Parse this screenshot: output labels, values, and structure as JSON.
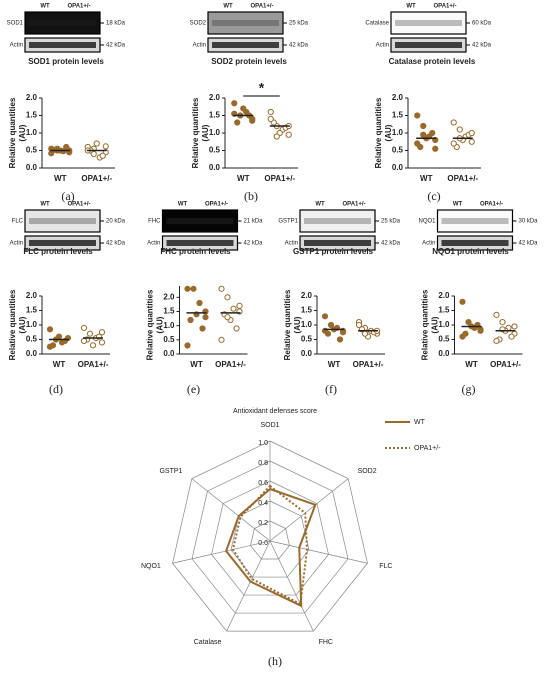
{
  "chart_data": [
    {
      "type": "scatter",
      "panel": "(a)",
      "title": "SOD1 protein levels",
      "ylabel": [
        "Relative quantities",
        "(AU)"
      ],
      "blot": {
        "lanes": [
          "WT",
          "OPA1+/-"
        ],
        "rows": [
          {
            "protein": "SOD1",
            "kda": "18 kDa"
          },
          {
            "protein": "Actin",
            "kda": "42 kDa"
          }
        ]
      },
      "categories": [
        "WT",
        "OPA1+/-"
      ],
      "ylim": [
        0,
        2.0
      ],
      "yticks": [
        {
          "value": 0,
          "label": "0.0"
        },
        {
          "value": 0.5,
          "label": "0.5"
        },
        {
          "value": 1,
          "label": "1.0"
        },
        {
          "value": 1.5,
          "label": "1.5"
        },
        {
          "value": 2,
          "label": "2.0"
        }
      ],
      "series": [
        {
          "name": "WT",
          "color": "#9a6a2c",
          "filled": true,
          "mean": 0.5,
          "values": [
            0.55,
            0.5,
            0.48,
            0.45,
            0.52,
            0.5,
            0.6,
            0.42,
            0.5,
            0.55
          ]
        },
        {
          "name": "OPA1+/-",
          "color": "#9a6a2c",
          "filled": false,
          "mean": 0.5,
          "values": [
            0.6,
            0.55,
            0.3,
            0.45,
            0.5,
            0.7,
            0.35,
            0.5,
            0.62,
            0.4
          ]
        }
      ]
    },
    {
      "type": "scatter",
      "panel": "(b)",
      "title": "SOD2 protein levels",
      "ylabel": [
        "Relative quantities",
        "(AU)"
      ],
      "annotation": "*",
      "blot": {
        "lanes": [
          "WT",
          "OPA1+/-"
        ],
        "rows": [
          {
            "protein": "SOD2",
            "kda": "25 kDa"
          },
          {
            "protein": "Actin",
            "kda": "42 kDa"
          }
        ]
      },
      "categories": [
        "WT",
        "OPA1+/-"
      ],
      "ylim": [
        0,
        2.0
      ],
      "yticks": [
        {
          "value": 0,
          "label": "0.0"
        },
        {
          "value": 0.5,
          "label": "0.5"
        },
        {
          "value": 1,
          "label": "1.0"
        },
        {
          "value": 1.5,
          "label": "1.5"
        },
        {
          "value": 2,
          "label": "2.0"
        }
      ],
      "series": [
        {
          "name": "WT",
          "color": "#9a6a2c",
          "filled": true,
          "mean": 1.5,
          "values": [
            1.85,
            1.5,
            1.6,
            1.4,
            1.3,
            1.7,
            1.5,
            1.55,
            1.35
          ]
        },
        {
          "name": "OPA1+/-",
          "color": "#9a6a2c",
          "filled": false,
          "mean": 1.2,
          "values": [
            1.6,
            1.2,
            1.1,
            0.95,
            1.3,
            1.0,
            1.15,
            1.4,
            1.2,
            0.9
          ]
        }
      ]
    },
    {
      "type": "scatter",
      "panel": "(c)",
      "title": "Catalase protein levels",
      "ylabel": [
        "Relative quantities",
        "(AU)"
      ],
      "blot": {
        "lanes": [
          "WT",
          "OPA1+/-"
        ],
        "rows": [
          {
            "protein": "Catalase",
            "kda": "60 kDa"
          },
          {
            "protein": "Actin",
            "kda": "42 kDa"
          }
        ]
      },
      "categories": [
        "WT",
        "OPA1+/-"
      ],
      "ylim": [
        0,
        2.0
      ],
      "yticks": [
        {
          "value": 0,
          "label": "0.0"
        },
        {
          "value": 0.5,
          "label": "0.5"
        },
        {
          "value": 1,
          "label": "1.0"
        },
        {
          "value": 1.5,
          "label": "1.5"
        },
        {
          "value": 2,
          "label": "2.0"
        }
      ],
      "series": [
        {
          "name": "WT",
          "color": "#9a6a2c",
          "filled": true,
          "mean": 0.85,
          "values": [
            1.5,
            1.2,
            0.9,
            0.8,
            0.6,
            0.85,
            1.0,
            0.7,
            0.55,
            0.95
          ]
        },
        {
          "name": "OPA1+/-",
          "color": "#9a6a2c",
          "filled": false,
          "mean": 0.85,
          "values": [
            1.3,
            1.1,
            0.9,
            0.75,
            0.6,
            0.8,
            0.95,
            0.7,
            1.0,
            0.85
          ]
        }
      ]
    },
    {
      "type": "scatter",
      "panel": "(d)",
      "title": "FLC protein levels",
      "ylabel": [
        "Relative quantities",
        "(AU)"
      ],
      "blot": {
        "lanes": [
          "WT",
          "OPA1+/-"
        ],
        "rows": [
          {
            "protein": "FLC",
            "kda": "20 kDa"
          },
          {
            "protein": "Actin",
            "kda": "42 kDa"
          }
        ]
      },
      "categories": [
        "WT",
        "OPA1+/-"
      ],
      "ylim": [
        0,
        2.0
      ],
      "yticks": [
        {
          "value": 0,
          "label": "0.0"
        },
        {
          "value": 0.5,
          "label": "0.5"
        },
        {
          "value": 1,
          "label": "1.0"
        },
        {
          "value": 1.5,
          "label": "1.5"
        },
        {
          "value": 2,
          "label": "2.0"
        }
      ],
      "series": [
        {
          "name": "WT",
          "color": "#9a6a2c",
          "filled": true,
          "mean": 0.5,
          "values": [
            0.85,
            0.5,
            0.4,
            0.55,
            0.3,
            0.6,
            0.45,
            0.25
          ]
        },
        {
          "name": "OPA1+/-",
          "color": "#9a6a2c",
          "filled": false,
          "mean": 0.55,
          "values": [
            0.9,
            0.7,
            0.55,
            0.4,
            0.5,
            0.3,
            0.6,
            0.45,
            0.75
          ]
        }
      ]
    },
    {
      "type": "scatter",
      "panel": "(e)",
      "title": "FHC protein levels",
      "ylabel": [
        "Relative quantities",
        "(AU)"
      ],
      "blot": {
        "lanes": [
          "WT",
          "OPA1+/-"
        ],
        "rows": [
          {
            "protein": "FHC",
            "kda": "21 kDa"
          },
          {
            "protein": "Actin",
            "kda": "42 kDa"
          }
        ]
      },
      "categories": [
        "WT",
        "OPA1+/-"
      ],
      "ylim": [
        0,
        2.4
      ],
      "yticks": [
        {
          "value": 0,
          "label": "0.0"
        },
        {
          "value": 0.5,
          "label": "0.5"
        },
        {
          "value": 1,
          "label": "1.0"
        },
        {
          "value": 1.5,
          "label": "1.5"
        },
        {
          "value": 2,
          "label": "2.0"
        }
      ],
      "series": [
        {
          "name": "WT",
          "color": "#9a6a2c",
          "filled": true,
          "mean": 1.45,
          "values": [
            2.3,
            2.3,
            1.8,
            1.5,
            1.2,
            1.4,
            0.9,
            0.3,
            1.3
          ]
        },
        {
          "name": "OPA1+/-",
          "color": "#9a6a2c",
          "filled": false,
          "mean": 1.45,
          "values": [
            2.3,
            2.0,
            1.6,
            1.5,
            1.4,
            1.2,
            0.9,
            0.5,
            1.7,
            1.3
          ]
        }
      ]
    },
    {
      "type": "scatter",
      "panel": "(f)",
      "title": "GSTP1 protein levels",
      "ylabel": [
        "Relative quantities",
        "(AU)"
      ],
      "blot": {
        "lanes": [
          "WT",
          "OPA1+/-"
        ],
        "rows": [
          {
            "protein": "GSTP1",
            "kda": "25 kDa"
          },
          {
            "protein": "Actin",
            "kda": "42 kDa"
          }
        ]
      },
      "categories": [
        "WT",
        "OPA1+/-"
      ],
      "ylim": [
        0,
        2.0
      ],
      "yticks": [
        {
          "value": 0,
          "label": "0.0"
        },
        {
          "value": 0.5,
          "label": "0.5"
        },
        {
          "value": 1,
          "label": "1.0"
        },
        {
          "value": 1.5,
          "label": "1.5"
        },
        {
          "value": 2,
          "label": "2.0"
        }
      ],
      "series": [
        {
          "name": "WT",
          "color": "#9a6a2c",
          "filled": true,
          "mean": 0.85,
          "values": [
            1.3,
            1.0,
            0.9,
            0.8,
            0.7,
            0.85,
            0.5,
            0.8,
            0.75
          ]
        },
        {
          "name": "OPA1+/-",
          "color": "#9a6a2c",
          "filled": false,
          "mean": 0.8,
          "values": [
            1.1,
            0.9,
            0.8,
            0.7,
            0.85,
            0.6,
            0.75,
            1.0,
            0.8,
            0.7
          ]
        }
      ]
    },
    {
      "type": "scatter",
      "panel": "(g)",
      "title": "NQO1 protein levels",
      "ylabel": [
        "Relative quantities",
        "(AU)"
      ],
      "blot": {
        "lanes": [
          "WT",
          "OPA1+/-"
        ],
        "rows": [
          {
            "protein": "NQO1",
            "kda": "30 kDa"
          },
          {
            "protein": "Actin",
            "kda": "42 kDa"
          }
        ]
      },
      "categories": [
        "WT",
        "OPA1+/-"
      ],
      "ylim": [
        0,
        2.0
      ],
      "yticks": [
        {
          "value": 0,
          "label": "0.0"
        },
        {
          "value": 0.5,
          "label": "0.5"
        },
        {
          "value": 1,
          "label": "1.0"
        },
        {
          "value": 1.5,
          "label": "1.5"
        },
        {
          "value": 2,
          "label": "2.0"
        }
      ],
      "series": [
        {
          "name": "WT",
          "color": "#9a6a2c",
          "filled": true,
          "mean": 0.95,
          "values": [
            1.8,
            1.1,
            0.9,
            0.85,
            0.7,
            0.95,
            1.0,
            0.6,
            0.8
          ]
        },
        {
          "name": "OPA1+/-",
          "color": "#9a6a2c",
          "filled": false,
          "mean": 0.8,
          "values": [
            1.35,
            1.1,
            0.9,
            0.7,
            0.5,
            0.8,
            0.6,
            0.45,
            0.95,
            0.85
          ]
        }
      ]
    },
    {
      "type": "radar",
      "panel": "(h)",
      "title": "Antioxidant defenses score",
      "axes": [
        "SOD1",
        "SOD2",
        "FLC",
        "FHC",
        "Catalase",
        "NQO1",
        "GSTP1"
      ],
      "rlim": [
        0,
        1
      ],
      "rticks": [
        {
          "value": 0,
          "label": "0.0"
        },
        {
          "value": 0.2,
          "label": "0.2"
        },
        {
          "value": 0.4,
          "label": "0.4"
        },
        {
          "value": 0.6,
          "label": "0.6"
        },
        {
          "value": 0.8,
          "label": "0.8"
        },
        {
          "value": 1,
          "label": "1.0"
        }
      ],
      "series": [
        {
          "name": "WT",
          "color": "#9a6a2c",
          "dash": "solid",
          "values": [
            0.52,
            0.58,
            0.3,
            0.72,
            0.45,
            0.45,
            0.4
          ]
        },
        {
          "name": "OPA1+/-",
          "color": "#9a6a2c",
          "dash": "dotted",
          "values": [
            0.55,
            0.45,
            0.38,
            0.7,
            0.42,
            0.38,
            0.38
          ]
        }
      ]
    }
  ]
}
